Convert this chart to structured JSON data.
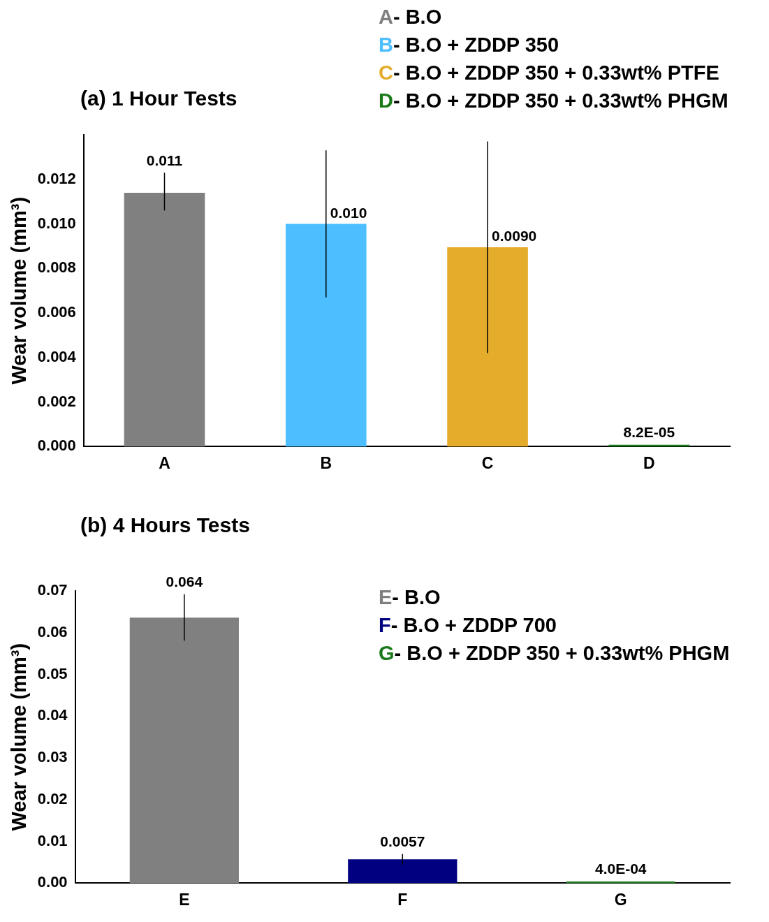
{
  "chart_data": [
    {
      "type": "bar",
      "title": "(a) 1 Hour Tests",
      "ylabel": "Wear volume (mm³)",
      "categories": [
        "A",
        "B",
        "C",
        "D"
      ],
      "values": [
        0.0114,
        0.01,
        0.00895,
        8.2e-05
      ],
      "colors": [
        "#808080",
        "#4dbeff",
        "#e5ac2b",
        "#1a7a1a"
      ],
      "errors": [
        [
          0.0106,
          0.0123
        ],
        [
          0.0067,
          0.0133
        ],
        [
          0.0042,
          0.0137
        ],
        null
      ],
      "value_labels": [
        "0.011",
        "0.010",
        "0.0090",
        "8.2E-05"
      ],
      "ylim": [
        0,
        0.014
      ],
      "yticks": [
        {
          "value": 0,
          "label": "0.000"
        },
        {
          "value": 0.002,
          "label": "0.002"
        },
        {
          "value": 0.004,
          "label": "0.004"
        },
        {
          "value": 0.006,
          "label": "0.006"
        },
        {
          "value": 0.008,
          "label": "0.008"
        },
        {
          "value": 0.01,
          "label": "0.010"
        },
        {
          "value": 0.012,
          "label": "0.012"
        }
      ],
      "grid": false,
      "legend": false,
      "annotations": [
        "A- B.O",
        "B- B.O + ZDDP 350",
        "C- B.O + ZDDP 350 + 0.33wt% PTFE",
        "D- B.O + ZDDP 350 + 0.33wt% PHGM"
      ]
    },
    {
      "type": "bar",
      "title": "(b) 4 Hours Tests",
      "ylabel": "Wear volume (mm³)",
      "categories": [
        "E",
        "F",
        "G"
      ],
      "values": [
        0.0636,
        0.0057,
        0.0004
      ],
      "colors": [
        "#808080",
        "#000080",
        "#1a7a1a"
      ],
      "errors": [
        [
          0.0581,
          0.0692
        ],
        [
          0.0044,
          0.007
        ],
        null
      ],
      "value_labels": [
        "0.064",
        "0.0057",
        "4.0E-04"
      ],
      "ylim": [
        0,
        0.07
      ],
      "yticks": [
        {
          "value": 0,
          "label": "0.00"
        },
        {
          "value": 0.01,
          "label": "0.01"
        },
        {
          "value": 0.02,
          "label": "0.02"
        },
        {
          "value": 0.03,
          "label": "0.03"
        },
        {
          "value": 0.04,
          "label": "0.04"
        },
        {
          "value": 0.05,
          "label": "0.05"
        },
        {
          "value": 0.06,
          "label": "0.06"
        },
        {
          "value": 0.07,
          "label": "0.07"
        }
      ],
      "grid": false,
      "legend": false,
      "annotations": [
        "E- B.O",
        "F- B.O + ZDDP 700",
        "G- B.O + ZDDP 350 + 0.33wt% PHGM"
      ]
    }
  ]
}
